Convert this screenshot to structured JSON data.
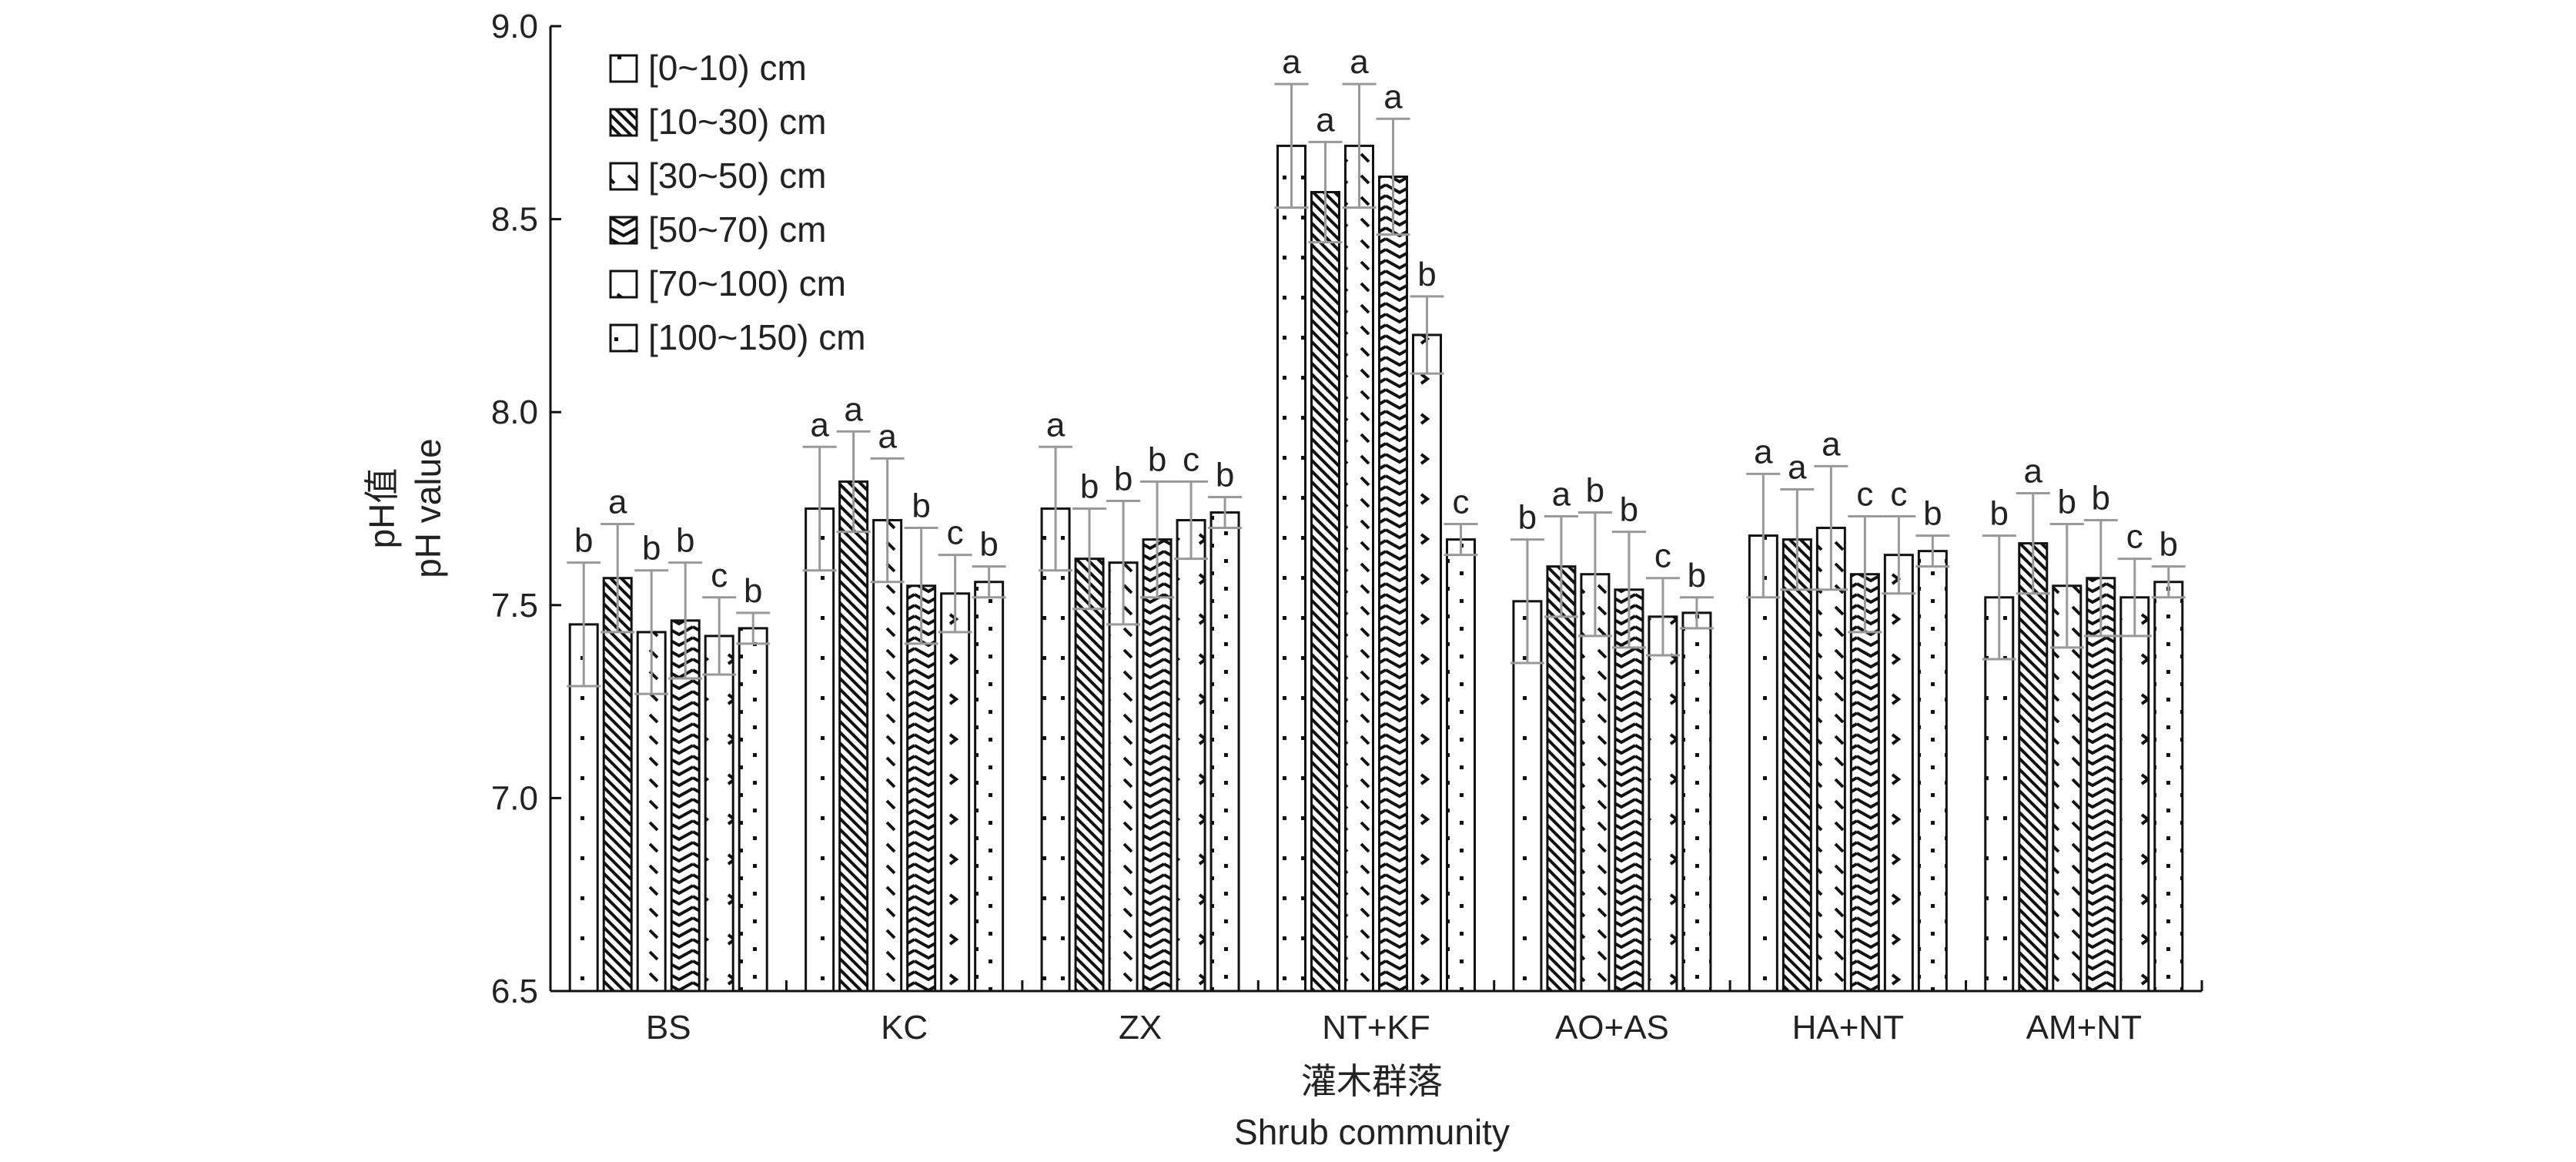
{
  "chart_data": {
    "type": "bar",
    "title": "",
    "ylabel_cn": "pH值",
    "ylabel": "pH value",
    "xlabel_cn": "灌木群落",
    "xlabel": "Shrub community",
    "ylim": [
      6.5,
      9.0
    ],
    "yticks": [
      "6.5",
      "7.0",
      "7.5",
      "8.0",
      "8.5",
      "9.0"
    ],
    "grid": false,
    "legend_placement": "top-left",
    "categories": [
      "BS",
      "KC",
      "ZX",
      "NT+KF",
      "AO+AS",
      "HA+NT",
      "AM+NT"
    ],
    "series": [
      {
        "name": "[0~10) cm",
        "pattern": "sparse-dots",
        "values": [
          7.45,
          7.75,
          7.75,
          8.69,
          7.51,
          7.68,
          7.52
        ],
        "errors": [
          0.16,
          0.16,
          0.16,
          0.16,
          0.16,
          0.16,
          0.16
        ],
        "letters": [
          "b",
          "a",
          "a",
          "a",
          "b",
          "a",
          "b"
        ]
      },
      {
        "name": "[10~30) cm",
        "pattern": "dense-diagonal",
        "values": [
          7.57,
          7.82,
          7.62,
          8.57,
          7.6,
          7.67,
          7.66
        ],
        "errors": [
          0.14,
          0.13,
          0.13,
          0.13,
          0.13,
          0.13,
          0.13
        ],
        "letters": [
          "a",
          "a",
          "b",
          "a",
          "a",
          "a",
          "a"
        ]
      },
      {
        "name": "[30~50) cm",
        "pattern": "dashes",
        "values": [
          7.43,
          7.72,
          7.61,
          8.69,
          7.58,
          7.7,
          7.55
        ],
        "errors": [
          0.16,
          0.16,
          0.16,
          0.16,
          0.16,
          0.16,
          0.16
        ],
        "letters": [
          "b",
          "a",
          "b",
          "a",
          "b",
          "a",
          "b"
        ]
      },
      {
        "name": "[50~70) cm",
        "pattern": "zigzag",
        "values": [
          7.46,
          7.55,
          7.67,
          8.61,
          7.54,
          7.58,
          7.57
        ],
        "errors": [
          0.15,
          0.15,
          0.15,
          0.15,
          0.15,
          0.15,
          0.15
        ],
        "letters": [
          "b",
          "b",
          "b",
          "a",
          "b",
          "c",
          "b"
        ]
      },
      {
        "name": "[70~100) cm",
        "pattern": "chevrons",
        "values": [
          7.42,
          7.53,
          7.72,
          8.2,
          7.47,
          7.63,
          7.52
        ],
        "errors": [
          0.1,
          0.1,
          0.1,
          0.1,
          0.1,
          0.1,
          0.1
        ],
        "letters": [
          "c",
          "c",
          "c",
          "b",
          "c",
          "c",
          "c"
        ]
      },
      {
        "name": "[100~150) cm",
        "pattern": "scattered-dots",
        "values": [
          7.44,
          7.56,
          7.74,
          7.67,
          7.48,
          7.64,
          7.56
        ],
        "errors": [
          0.04,
          0.04,
          0.04,
          0.04,
          0.04,
          0.04,
          0.04
        ],
        "letters": [
          "b",
          "b",
          "b",
          "c",
          "b",
          "b",
          "b"
        ]
      }
    ],
    "colors": {
      "bar_stroke": "#111111",
      "error_bar": "#999999",
      "fill": "#ffffff"
    }
  }
}
